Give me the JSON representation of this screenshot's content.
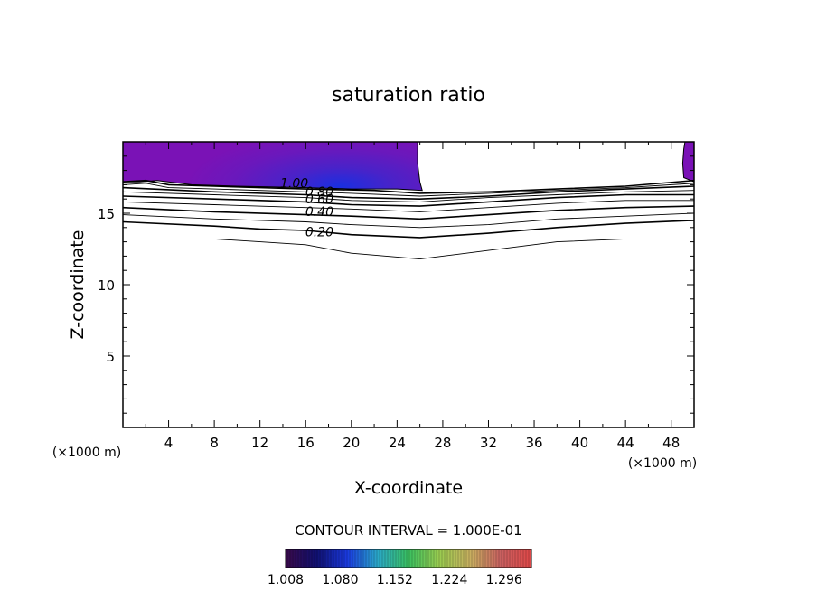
{
  "chart_data": {
    "type": "contour",
    "title": "saturation ratio",
    "xlabel": "X-coordinate",
    "ylabel": "Z-coordinate",
    "x_unit": "(×1000 m)",
    "xlim": [
      0,
      50
    ],
    "ylim": [
      0,
      20
    ],
    "x_ticks": [
      4,
      8,
      12,
      16,
      20,
      24,
      28,
      32,
      36,
      40,
      44,
      48
    ],
    "y_ticks": [
      5,
      10,
      15
    ],
    "grid": false,
    "contour_interval_text": "CONTOUR INTERVAL = 1.000E-01",
    "contour_labels": [
      "1.00",
      "0.80",
      "0.60",
      "0.40",
      "0.20"
    ],
    "contours": [
      {
        "level": 0.1,
        "points": [
          [
            0,
            13.2
          ],
          [
            8,
            13.2
          ],
          [
            12,
            13.0
          ],
          [
            16,
            12.8
          ],
          [
            20,
            12.2
          ],
          [
            26,
            11.8
          ],
          [
            32,
            12.4
          ],
          [
            38,
            13.0
          ],
          [
            44,
            13.2
          ],
          [
            50,
            13.2
          ]
        ]
      },
      {
        "level": 0.2,
        "points": [
          [
            0,
            14.4
          ],
          [
            8,
            14.1
          ],
          [
            12,
            13.9
          ],
          [
            16,
            13.8
          ],
          [
            20,
            13.5
          ],
          [
            26,
            13.3
          ],
          [
            32,
            13.6
          ],
          [
            38,
            14.0
          ],
          [
            44,
            14.3
          ],
          [
            50,
            14.5
          ]
        ]
      },
      {
        "level": 0.3,
        "points": [
          [
            0,
            14.9
          ],
          [
            8,
            14.6
          ],
          [
            16,
            14.4
          ],
          [
            20,
            14.2
          ],
          [
            26,
            14.0
          ],
          [
            32,
            14.2
          ],
          [
            38,
            14.6
          ],
          [
            44,
            14.8
          ],
          [
            50,
            15.0
          ]
        ]
      },
      {
        "level": 0.4,
        "points": [
          [
            0,
            15.4
          ],
          [
            8,
            15.1
          ],
          [
            16,
            14.9
          ],
          [
            20,
            14.8
          ],
          [
            26,
            14.6
          ],
          [
            32,
            14.9
          ],
          [
            38,
            15.2
          ],
          [
            44,
            15.4
          ],
          [
            50,
            15.5
          ]
        ]
      },
      {
        "level": 0.5,
        "points": [
          [
            0,
            15.8
          ],
          [
            8,
            15.6
          ],
          [
            16,
            15.4
          ],
          [
            20,
            15.3
          ],
          [
            26,
            15.1
          ],
          [
            32,
            15.4
          ],
          [
            38,
            15.7
          ],
          [
            44,
            15.9
          ],
          [
            50,
            15.9
          ]
        ]
      },
      {
        "level": 0.6,
        "points": [
          [
            0,
            16.2
          ],
          [
            8,
            16.0
          ],
          [
            16,
            15.8
          ],
          [
            20,
            15.6
          ],
          [
            26,
            15.5
          ],
          [
            32,
            15.8
          ],
          [
            38,
            16.1
          ],
          [
            44,
            16.3
          ],
          [
            50,
            16.3
          ]
        ]
      },
      {
        "level": 0.7,
        "points": [
          [
            0,
            16.5
          ],
          [
            8,
            16.3
          ],
          [
            16,
            16.1
          ],
          [
            20,
            15.9
          ],
          [
            26,
            15.8
          ],
          [
            32,
            16.1
          ],
          [
            38,
            16.3
          ],
          [
            44,
            16.5
          ],
          [
            50,
            16.6
          ]
        ]
      },
      {
        "level": 0.8,
        "points": [
          [
            0,
            16.8
          ],
          [
            8,
            16.5
          ],
          [
            16,
            16.3
          ],
          [
            20,
            16.1
          ],
          [
            26,
            16.0
          ],
          [
            32,
            16.2
          ],
          [
            38,
            16.5
          ],
          [
            44,
            16.7
          ],
          [
            50,
            16.9
          ]
        ]
      },
      {
        "level": 0.9,
        "points": [
          [
            0,
            17.0
          ],
          [
            2,
            17.1
          ],
          [
            4,
            16.8
          ],
          [
            8,
            16.7
          ],
          [
            16,
            16.5
          ],
          [
            20,
            16.4
          ],
          [
            26,
            16.2
          ],
          [
            32,
            16.4
          ],
          [
            38,
            16.6
          ],
          [
            44,
            16.8
          ],
          [
            50,
            17.1
          ]
        ]
      },
      {
        "level": 1.0,
        "points": [
          [
            0,
            17.2
          ],
          [
            2,
            17.3
          ],
          [
            4,
            17.0
          ],
          [
            8,
            16.9
          ],
          [
            16,
            16.7
          ],
          [
            22,
            16.6
          ],
          [
            26,
            16.4
          ],
          [
            32,
            16.5
          ],
          [
            38,
            16.7
          ],
          [
            44,
            16.9
          ],
          [
            50,
            17.3
          ]
        ]
      }
    ],
    "shaded_regions": [
      {
        "boundary": [
          [
            0,
            20
          ],
          [
            25.8,
            20
          ],
          [
            25.8,
            18.5
          ],
          [
            26.0,
            17.2
          ],
          [
            26.2,
            16.6
          ],
          [
            24,
            16.7
          ],
          [
            20,
            16.7
          ],
          [
            16,
            16.8
          ],
          [
            10,
            16.9
          ],
          [
            6,
            17.0
          ],
          [
            3,
            17.3
          ],
          [
            1.5,
            17.2
          ],
          [
            0,
            17.2
          ]
        ],
        "color": "#7a12b6",
        "core": [
          19,
          16.9
        ],
        "core_color": "#1a2fe0"
      },
      {
        "boundary": [
          [
            49.2,
            20
          ],
          [
            50,
            20
          ],
          [
            50,
            17.2
          ],
          [
            49.1,
            17.5
          ],
          [
            49.0,
            18.5
          ],
          [
            49.1,
            19.5
          ]
        ],
        "color": "#7a12b6"
      }
    ],
    "colorbar": {
      "min": 1.008,
      "max": 1.332,
      "tick_labels": [
        "1.008",
        "1.080",
        "1.152",
        "1.224",
        "1.296"
      ],
      "colors": [
        "#3a0a4a",
        "#101070",
        "#1a3ae0",
        "#2aa8c8",
        "#3ac060",
        "#9acc50",
        "#c8b060",
        "#c86060",
        "#e04848"
      ]
    }
  }
}
